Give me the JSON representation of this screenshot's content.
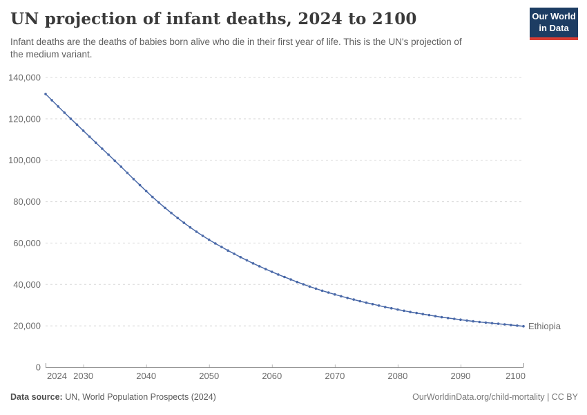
{
  "header": {
    "title": "UN projection of infant deaths, 2024 to 2100",
    "subtitle": "Infant deaths are the deaths of babies born alive who die in their first year of life. This is the UN's projection of\nthe medium variant."
  },
  "logo": {
    "line1": "Our World",
    "line2": "in Data",
    "bg_color": "#1d3d63",
    "stripe_color": "#d93d33"
  },
  "chart_data": {
    "type": "line",
    "title": "UN projection of infant deaths, 2024 to 2100",
    "xlabel": "",
    "ylabel": "",
    "ylim": [
      0,
      140000
    ],
    "yticks": [
      0,
      20000,
      40000,
      60000,
      80000,
      100000,
      120000,
      140000
    ],
    "xticks": [
      2024,
      2030,
      2040,
      2050,
      2060,
      2070,
      2080,
      2090,
      2100
    ],
    "grid": "horizontal-dashed",
    "legend_position": "end-of-line-label",
    "grid_color": "#d7d7d7",
    "axis_color": "#8f8f8f",
    "tick_label_color": "#6c6c6c",
    "series": [
      {
        "name": "Ethiopia",
        "color": "#4a69a8",
        "marker": "dot",
        "x": [
          2024,
          2025,
          2026,
          2027,
          2028,
          2029,
          2030,
          2031,
          2032,
          2033,
          2034,
          2035,
          2036,
          2037,
          2038,
          2039,
          2040,
          2041,
          2042,
          2043,
          2044,
          2045,
          2046,
          2047,
          2048,
          2049,
          2050,
          2051,
          2052,
          2053,
          2054,
          2055,
          2056,
          2057,
          2058,
          2059,
          2060,
          2061,
          2062,
          2063,
          2064,
          2065,
          2066,
          2067,
          2068,
          2069,
          2070,
          2071,
          2072,
          2073,
          2074,
          2075,
          2076,
          2077,
          2078,
          2079,
          2080,
          2081,
          2082,
          2083,
          2084,
          2085,
          2086,
          2087,
          2088,
          2089,
          2090,
          2091,
          2092,
          2093,
          2094,
          2095,
          2096,
          2097,
          2098,
          2099,
          2100
        ],
        "values": [
          132000,
          129000,
          126000,
          123000,
          120100,
          117200,
          114300,
          111400,
          108500,
          105600,
          102700,
          99800,
          96900,
          93900,
          90900,
          88000,
          85100,
          82300,
          79600,
          77000,
          74500,
          72100,
          69800,
          67600,
          65500,
          63500,
          61600,
          59800,
          58100,
          56400,
          54800,
          53200,
          51700,
          50200,
          48800,
          47400,
          46100,
          44800,
          43600,
          42400,
          41200,
          40100,
          39000,
          38000,
          37000,
          36100,
          35200,
          34300,
          33500,
          32700,
          31900,
          31200,
          30500,
          29800,
          29100,
          28500,
          27900,
          27300,
          26700,
          26200,
          25700,
          25200,
          24700,
          24200,
          23800,
          23400,
          23000,
          22600,
          22200,
          21900,
          21600,
          21300,
          21000,
          20700,
          20400,
          20100,
          19800
        ]
      }
    ]
  },
  "footer": {
    "source_label": "Data source:",
    "source_text": " UN, World Population Prospects (2024)",
    "credit": "OurWorldinData.org/child-mortality | CC BY"
  }
}
